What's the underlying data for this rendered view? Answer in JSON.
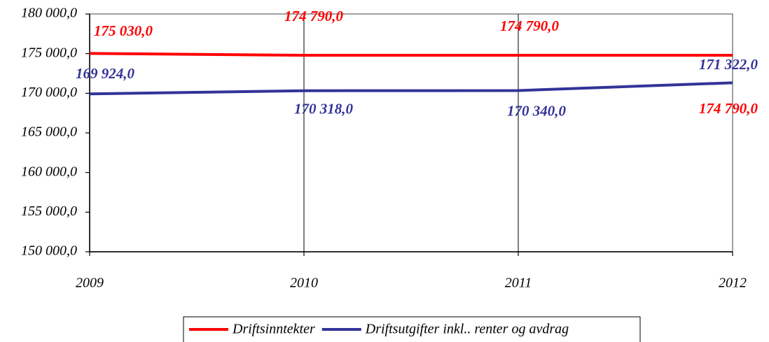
{
  "chart_data": {
    "type": "line",
    "categories": [
      "2009",
      "2010",
      "2011",
      "2012"
    ],
    "series": [
      {
        "name": "Driftsinntekter",
        "color": "#ff0000",
        "values": [
          175030,
          174790,
          174790,
          174790
        ],
        "value_labels": [
          "175 030,0",
          "174 790,0",
          "174 790,0",
          "174 790,0"
        ]
      },
      {
        "name": "Driftsutgifter inkl.. renter og avdrag",
        "color": "#333399",
        "values": [
          169924,
          170318,
          170340,
          171322
        ],
        "value_labels": [
          "169 924,0",
          "170 318,0",
          "170 340,0",
          "171 322,0"
        ]
      }
    ],
    "ylim": [
      150000,
      180000
    ],
    "yticks": [
      {
        "value": 150000,
        "label": "150 000,0"
      },
      {
        "value": 155000,
        "label": "155 000,0"
      },
      {
        "value": 160000,
        "label": "160 000,0"
      },
      {
        "value": 165000,
        "label": "165 000,0"
      },
      {
        "value": 170000,
        "label": "170 000,0"
      },
      {
        "value": 175000,
        "label": "175 000,0"
      },
      {
        "value": 180000,
        "label": "180 000,0"
      }
    ],
    "grid": "x",
    "legend": "bottom"
  }
}
